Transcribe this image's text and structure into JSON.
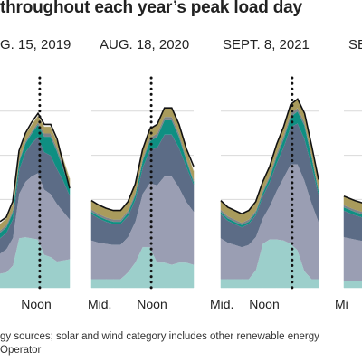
{
  "title": "throughout each year’s peak load day",
  "footer_lines": [
    "gy sources; solar and wind category includes other renewable energy",
    "Operator"
  ],
  "colors": {
    "layer_bottom": "#9ccfcb",
    "layer_second": "#9a9eb3",
    "layer_third": "#5c6c86",
    "layer_teal": "#0f8f82",
    "layer_gray": "#7c8389",
    "layer_olive": "#a99b5c",
    "total_outline": "#111111",
    "peak_line": "#111111",
    "grid": "#d9d9d9"
  },
  "chart_data": [
    {
      "type": "area",
      "title": "G. 15, 2019",
      "x_tick_labels": [
        "Noon"
      ],
      "peak_marker_x": 0.57,
      "series": [
        {
          "values": [
            13,
            14,
            20,
            45,
            46,
            45,
            44,
            30,
            28,
            24,
            25,
            26
          ]
        },
        {
          "values": [
            18,
            21,
            25,
            40,
            50,
            56,
            60,
            59,
            57,
            52,
            44,
            36
          ]
        },
        {
          "values": [
            14,
            15,
            17,
            22,
            27,
            30,
            33,
            34,
            35,
            32,
            28,
            22
          ]
        },
        {
          "values": [
            5,
            5,
            6,
            7,
            8,
            9,
            11,
            14,
            17,
            16,
            11,
            7
          ]
        },
        {
          "values": [
            2,
            2,
            2,
            2,
            2,
            2,
            2,
            3,
            3,
            3,
            3,
            2
          ]
        },
        {
          "values": [
            6,
            6,
            6,
            6,
            6,
            6,
            6,
            6,
            6,
            6,
            6,
            6
          ]
        }
      ],
      "total": [
        60,
        64,
        78,
        124,
        140,
        150,
        158,
        148,
        148,
        135,
        112,
        90
      ]
    },
    {
      "type": "area",
      "title": "AUG. 18, 2020",
      "x_tick_labels": [
        "Mid.",
        "Noon"
      ],
      "peak_marker_x": 0.585,
      "series": [
        {
          "values": [
            8,
            8,
            8,
            8,
            8,
            14,
            23,
            37,
            37,
            23,
            23,
            21,
            23,
            23,
            21
          ]
        },
        {
          "values": [
            35,
            33,
            32,
            31,
            31,
            32,
            37,
            48,
            58,
            70,
            78,
            80,
            68,
            55,
            48
          ]
        },
        {
          "values": [
            24,
            22,
            20,
            19,
            19,
            19,
            20,
            24,
            30,
            34,
            38,
            38,
            36,
            32,
            25
          ]
        },
        {
          "values": [
            2,
            2,
            2,
            2,
            2,
            3,
            4,
            6,
            8,
            10,
            13,
            13,
            10,
            6,
            2
          ]
        },
        {
          "values": [
            2,
            2,
            2,
            2,
            2,
            2,
            2,
            2,
            3,
            3,
            3,
            3,
            3,
            2,
            2
          ]
        },
        {
          "values": [
            8,
            8,
            8,
            8,
            8,
            8,
            8,
            8,
            8,
            8,
            8,
            8,
            8,
            8,
            8
          ]
        }
      ],
      "total": [
        79,
        75,
        72,
        70,
        70,
        78,
        94,
        125,
        144,
        148,
        163,
        163,
        148,
        126,
        110
      ]
    },
    {
      "type": "area",
      "title": "SEPT. 8, 2021",
      "x_tick_labels": [
        "Mid.",
        "Noon"
      ],
      "peak_marker_x": 0.73,
      "series": [
        {
          "values": [
            8,
            8,
            8,
            8,
            8,
            16,
            40,
            44,
            44,
            43,
            40,
            34,
            15,
            8,
            8
          ]
        },
        {
          "values": [
            37,
            33,
            31,
            29,
            31,
            30,
            23,
            30,
            44,
            57,
            72,
            78,
            82,
            69,
            52
          ]
        },
        {
          "values": [
            22,
            20,
            19,
            18,
            19,
            20,
            20,
            22,
            25,
            28,
            34,
            37,
            38,
            34,
            25
          ]
        },
        {
          "values": [
            2,
            2,
            2,
            2,
            2,
            2,
            3,
            4,
            6,
            7,
            9,
            11,
            12,
            8,
            3
          ]
        },
        {
          "values": [
            2,
            2,
            2,
            2,
            2,
            2,
            2,
            2,
            3,
            3,
            3,
            3,
            3,
            2,
            2
          ]
        },
        {
          "values": [
            8,
            8,
            8,
            8,
            8,
            8,
            8,
            8,
            8,
            8,
            8,
            8,
            8,
            8,
            8
          ]
        }
      ],
      "total": [
        79,
        73,
        70,
        67,
        70,
        78,
        96,
        110,
        130,
        146,
        166,
        171,
        158,
        129,
        98
      ]
    },
    {
      "type": "area",
      "title": "SE",
      "x_tick_labels": [
        "Mi"
      ],
      "series": [
        {
          "values": [
            6,
            6,
            6
          ]
        },
        {
          "values": [
            40,
            38,
            36
          ]
        },
        {
          "values": [
            24,
            22,
            21
          ]
        },
        {
          "values": [
            3,
            3,
            3
          ]
        },
        {
          "values": [
            2,
            2,
            2
          ]
        },
        {
          "values": [
            8,
            8,
            8
          ]
        }
      ],
      "total": [
        83,
        79,
        76
      ]
    }
  ]
}
